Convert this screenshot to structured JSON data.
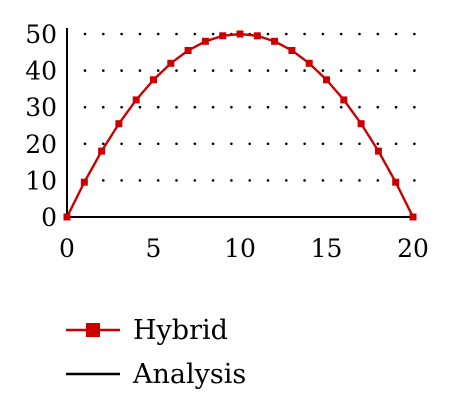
{
  "chart_data": {
    "type": "line",
    "title": "",
    "xlabel": "",
    "ylabel": "",
    "xlim": [
      0,
      20
    ],
    "ylim": [
      0,
      50
    ],
    "x_ticks": [
      "0",
      "5",
      "10",
      "15",
      "20"
    ],
    "y_ticks": [
      "0",
      "10",
      "20",
      "30",
      "40",
      "50"
    ],
    "grid": "dotted horizontal",
    "legend_position": "bottom-left",
    "series": [
      {
        "name": "Hybrid",
        "color": "#cc0000",
        "marker": "square",
        "x": [
          0,
          1,
          2,
          3,
          4,
          5,
          6,
          7,
          8,
          9,
          10,
          11,
          12,
          13,
          14,
          15,
          16,
          17,
          18,
          19,
          20
        ],
        "y": [
          0,
          9.5,
          18,
          25.5,
          32,
          37.5,
          42,
          45.5,
          48,
          49.5,
          50,
          49.5,
          48,
          45.5,
          42,
          37.5,
          32,
          25.5,
          18,
          9.5,
          0
        ]
      },
      {
        "name": "Analysis",
        "color": "#8b0000",
        "marker": "none",
        "x": [
          0,
          1,
          2,
          3,
          4,
          5,
          6,
          7,
          8,
          9,
          10,
          11,
          12,
          13,
          14,
          15,
          16,
          17,
          18,
          19,
          20
        ],
        "y": [
          0,
          9.5,
          18,
          25.5,
          32,
          37.5,
          42,
          45.5,
          48,
          49.5,
          50,
          49.5,
          48,
          45.5,
          42,
          37.5,
          32,
          25.5,
          18,
          9.5,
          0
        ]
      }
    ]
  }
}
